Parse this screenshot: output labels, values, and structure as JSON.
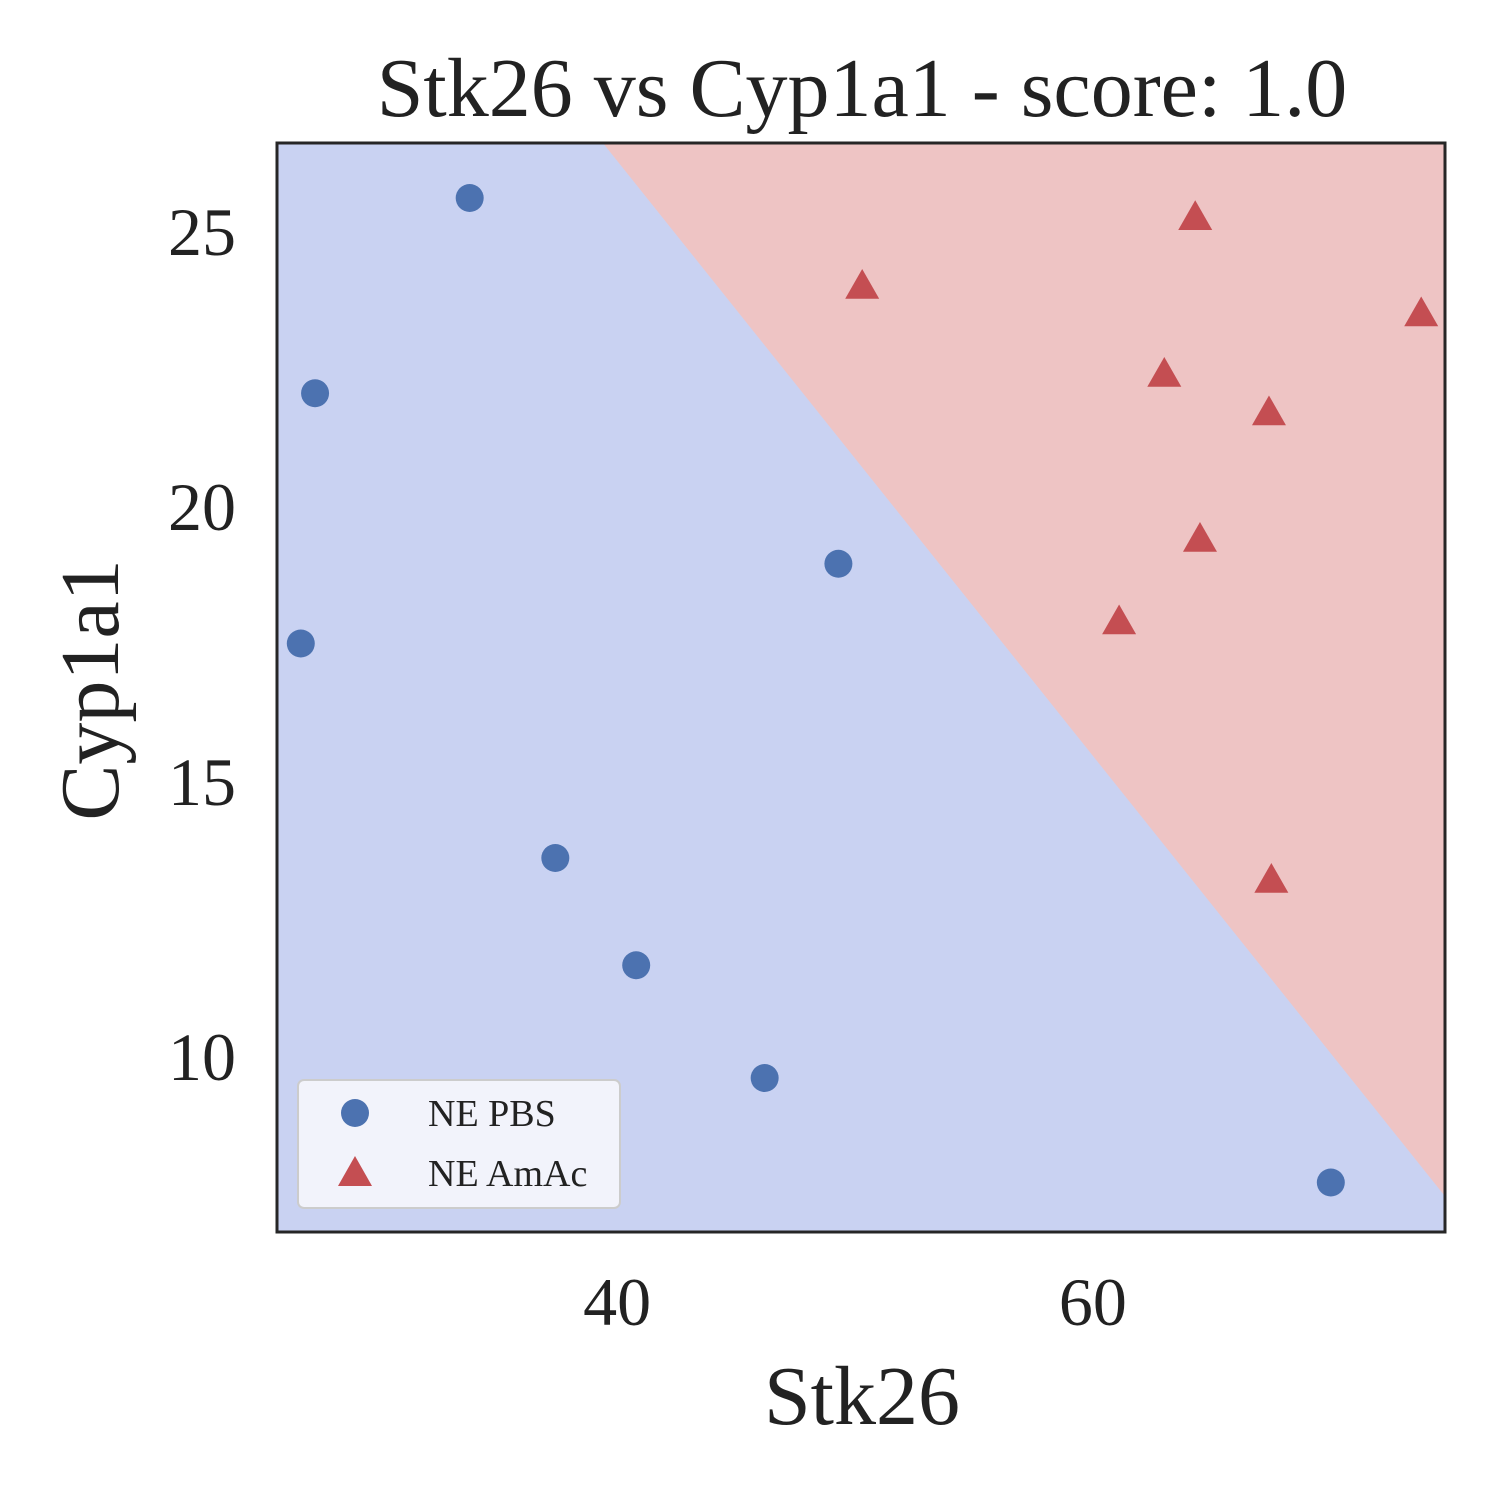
{
  "chart_data": {
    "type": "scatter",
    "title": "Stk26 vs Cyp1a1 - score: 1.0",
    "xlabel": "Stk26",
    "ylabel": "Cyp1a1",
    "xlim": [
      25.7,
      74.8
    ],
    "ylim": [
      6.8,
      26.6
    ],
    "xticks": [
      40,
      60
    ],
    "yticks": [
      10,
      15,
      20,
      25
    ],
    "grid": false,
    "legend_position": "lower-left",
    "decision_boundary": {
      "from": [
        39.4,
        26.6
      ],
      "to": [
        74.8,
        7.45
      ],
      "regions": [
        {
          "class": "NE PBS",
          "color": "#c9d2f2",
          "side": "lower-left"
        },
        {
          "class": "NE AmAc",
          "color": "#eec4c4",
          "side": "upper-right"
        }
      ]
    },
    "series": [
      {
        "name": "NE PBS",
        "marker": "circle",
        "color": "#4c72b0",
        "points": [
          [
            33.8,
            25.6
          ],
          [
            27.3,
            22.05
          ],
          [
            26.7,
            17.5
          ],
          [
            37.4,
            13.6
          ],
          [
            40.8,
            11.65
          ],
          [
            46.2,
            9.6
          ],
          [
            49.3,
            18.95
          ],
          [
            70.0,
            7.7
          ]
        ]
      },
      {
        "name": "NE AmAc",
        "marker": "triangle",
        "color": "#c44e52",
        "points": [
          [
            50.3,
            24.0
          ],
          [
            64.3,
            25.25
          ],
          [
            63.0,
            22.4
          ],
          [
            67.4,
            21.7
          ],
          [
            64.5,
            19.4
          ],
          [
            61.1,
            17.9
          ],
          [
            67.5,
            13.2
          ],
          [
            73.8,
            23.5
          ]
        ]
      }
    ]
  }
}
